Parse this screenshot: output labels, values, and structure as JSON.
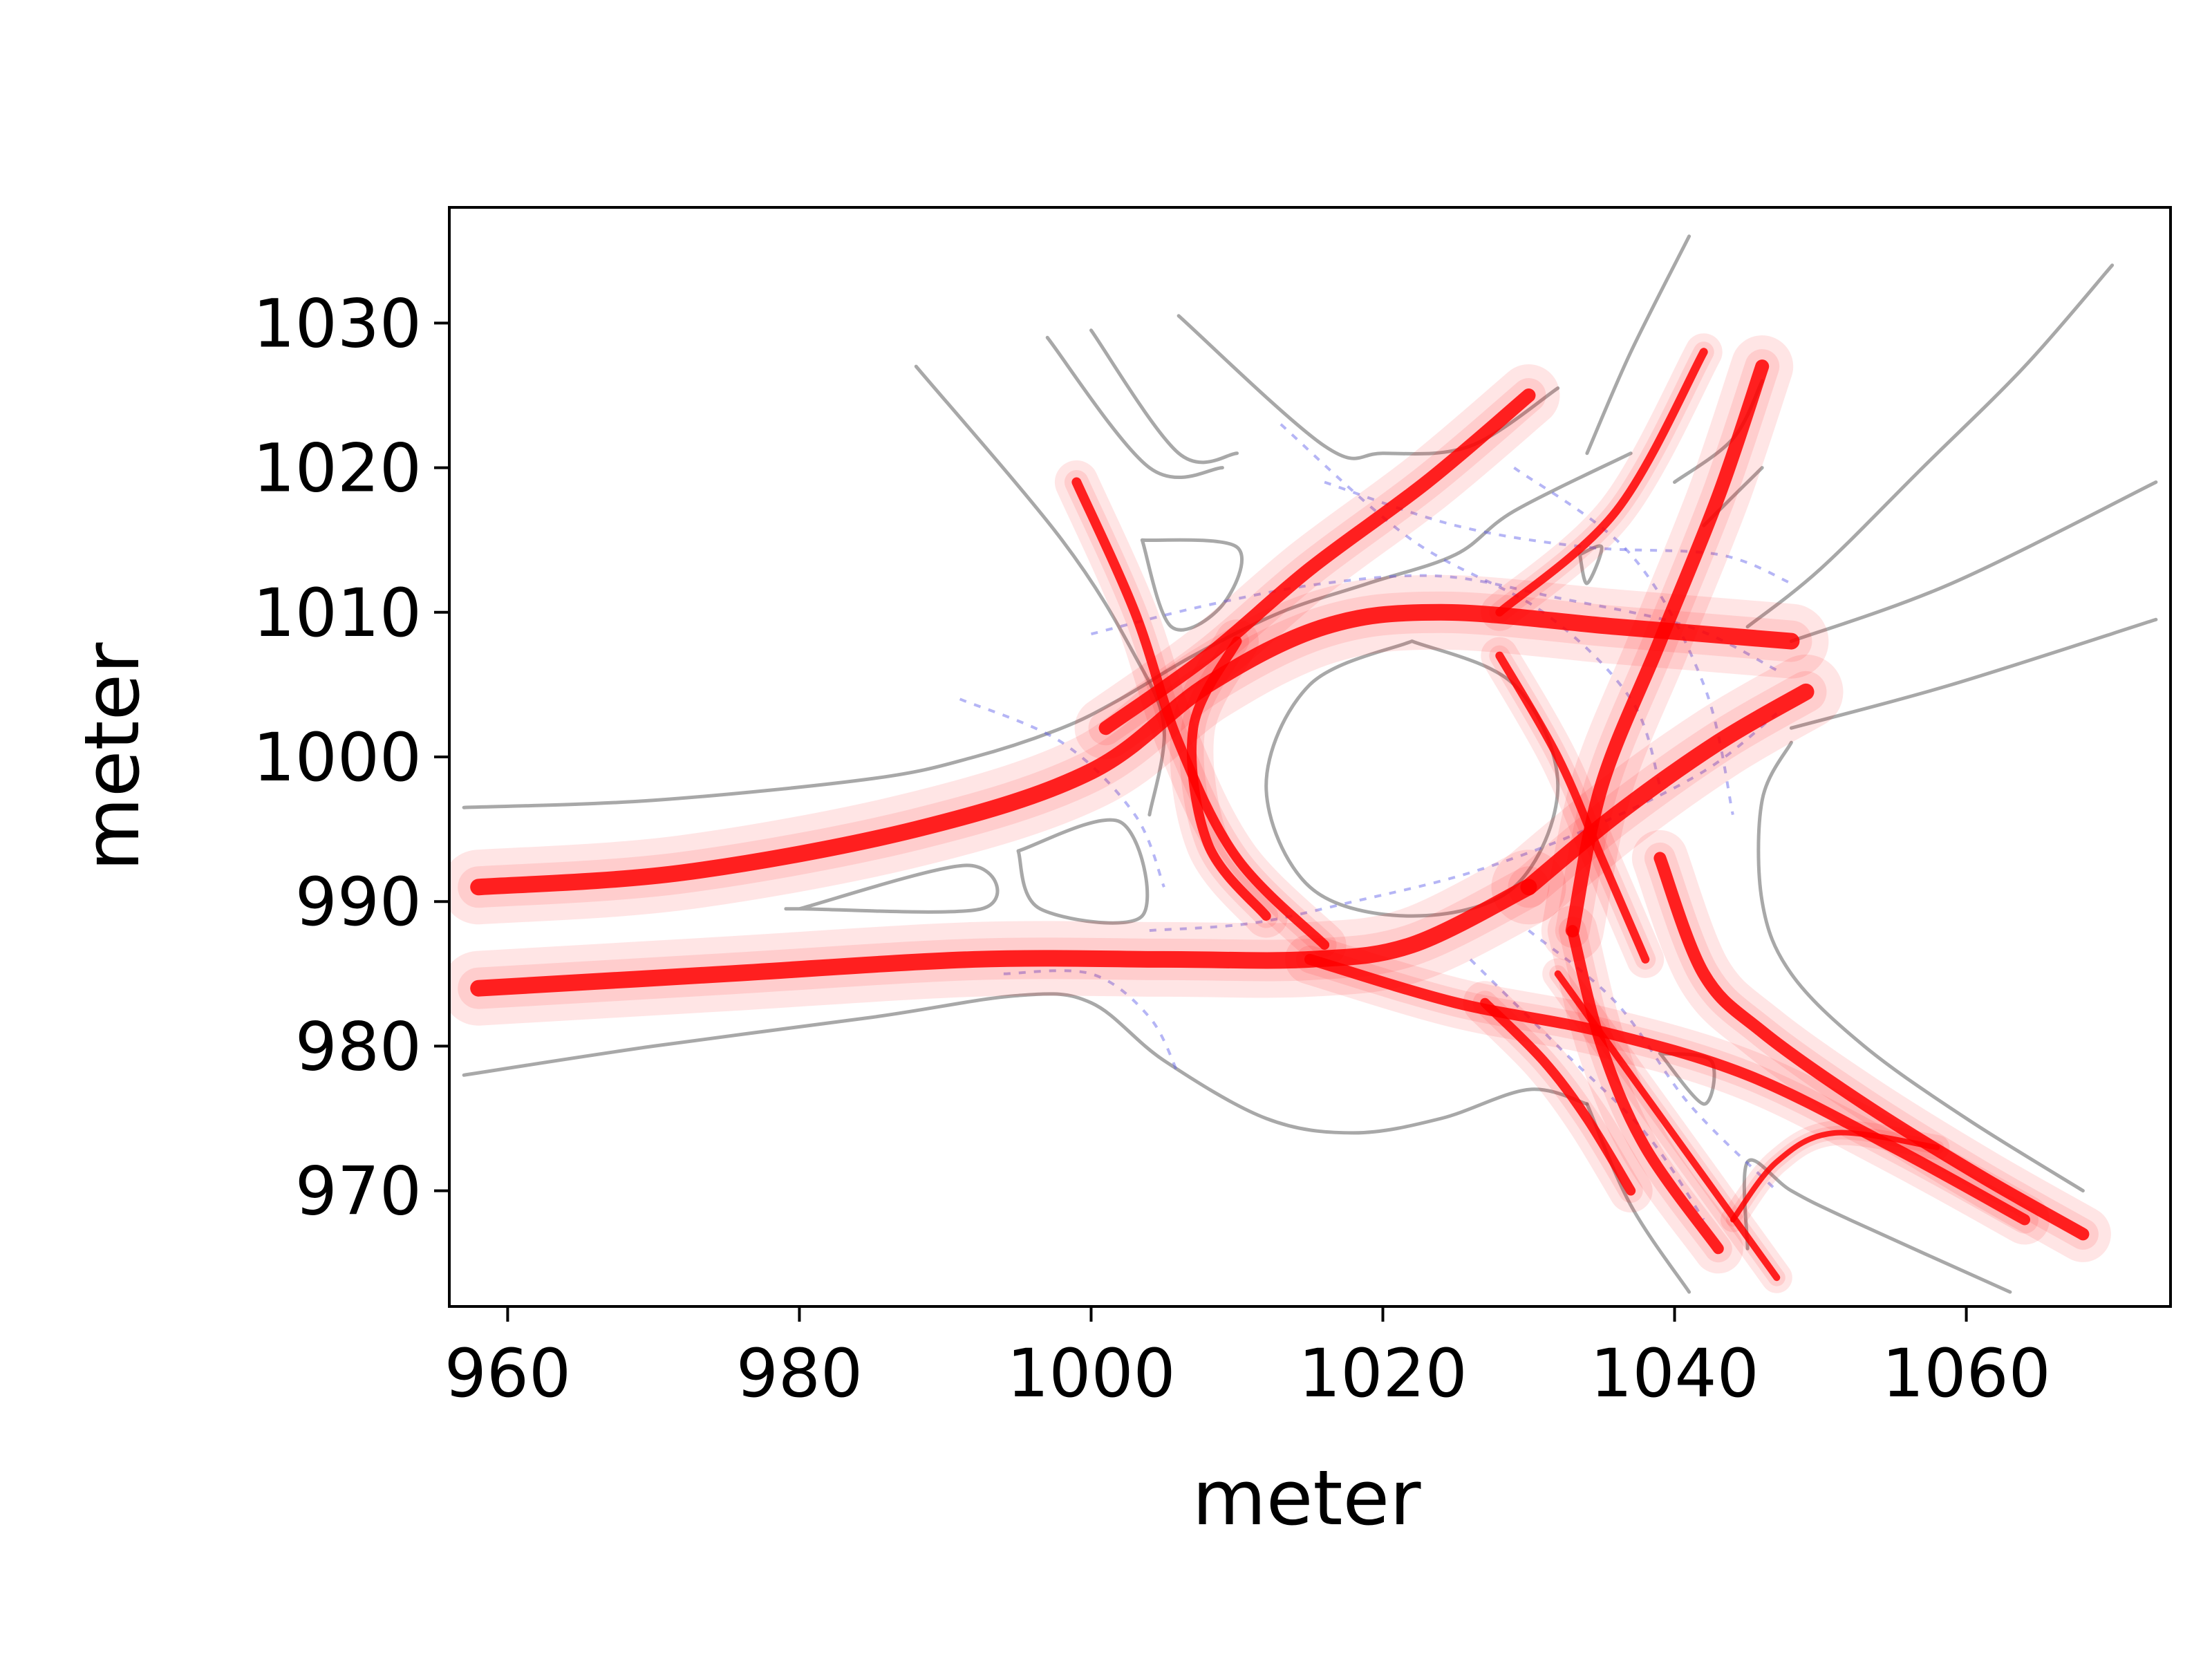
{
  "chart_data": {
    "type": "line",
    "title": "",
    "xlabel": "meter",
    "ylabel": "meter",
    "xlim": [
      956,
      1074
    ],
    "ylim": [
      962,
      1038
    ],
    "xticks": [
      960,
      980,
      1000,
      1020,
      1040,
      1060
    ],
    "yticks": [
      970,
      980,
      990,
      1000,
      1010,
      1020,
      1030
    ],
    "colors": {
      "trajectories": "#ff0000",
      "road_boundary": "#7a7a7a",
      "lane_centerline": "#5a5ae8"
    },
    "series": [
      {
        "kind": "trajectory",
        "width": 1.2,
        "x": [
          958,
          972,
          988,
          1000,
          1008,
          1016,
          1024,
          1036,
          1048
        ],
        "y": [
          991,
          992,
          995,
          999,
          1005,
          1009,
          1010,
          1009,
          1008
        ]
      },
      {
        "kind": "trajectory",
        "width": 1.2,
        "x": [
          958,
          975,
          992,
          1005,
          1015,
          1022,
          1030
        ],
        "y": [
          984,
          985,
          986,
          986,
          986,
          987,
          991
        ]
      },
      {
        "kind": "trajectory",
        "width": 1.2,
        "x": [
          1030,
          1036,
          1043,
          1049
        ],
        "y": [
          991,
          996,
          1001,
          1004.5
        ]
      },
      {
        "kind": "trajectory",
        "width": 1.0,
        "x": [
          1001,
          1008,
          1015,
          1023,
          1030
        ],
        "y": [
          1002,
          1007,
          1013,
          1019,
          1025
        ]
      },
      {
        "kind": "trajectory",
        "width": 1.0,
        "x": [
          1046,
          1043,
          1039,
          1035,
          1033
        ],
        "y": [
          1027,
          1018,
          1008,
          998,
          988
        ]
      },
      {
        "kind": "trajectory",
        "width": 0.8,
        "x": [
          1033,
          1035,
          1038,
          1043
        ],
        "y": [
          988,
          980,
          973,
          966
        ]
      },
      {
        "kind": "trajectory",
        "width": 0.9,
        "x": [
          1039,
          1042,
          1046,
          1053,
          1061,
          1068
        ],
        "y": [
          993,
          985,
          981,
          976,
          971,
          967
        ]
      },
      {
        "kind": "trajectory",
        "width": 0.8,
        "x": [
          1015,
          1025,
          1035,
          1045,
          1055,
          1064
        ],
        "y": [
          986,
          983,
          981,
          978,
          973,
          968
        ]
      },
      {
        "kind": "trajectory",
        "width": 0.7,
        "x": [
          1027,
          1031,
          1034,
          1037
        ],
        "y": [
          983,
          979,
          975,
          970
        ]
      },
      {
        "kind": "trajectory",
        "width": 0.7,
        "x": [
          999,
          1003,
          1006,
          1010,
          1016
        ],
        "y": [
          1019,
          1010,
          1001,
          993,
          987
        ]
      },
      {
        "kind": "trajectory",
        "width": 0.7,
        "x": [
          1010,
          1007,
          1008,
          1012
        ],
        "y": [
          1008,
          1002,
          994,
          989
        ]
      },
      {
        "kind": "trajectory",
        "width": 0.6,
        "x": [
          1028,
          1036,
          1042
        ],
        "y": [
          1010,
          1017,
          1028
        ]
      },
      {
        "kind": "trajectory",
        "width": 0.6,
        "x": [
          1028,
          1032,
          1035,
          1038
        ],
        "y": [
          1007,
          1000,
          993,
          986
        ]
      },
      {
        "kind": "trajectory",
        "width": 0.5,
        "x": [
          1032,
          1037,
          1042,
          1047
        ],
        "y": [
          985,
          978,
          971,
          964
        ]
      },
      {
        "kind": "trajectory",
        "width": 0.4,
        "x": [
          1044,
          1047,
          1051,
          1058
        ],
        "y": [
          968,
          972,
          974,
          973
        ]
      }
    ],
    "road_boundaries": [
      {
        "x": [
          957,
          970,
          985,
          992,
          998,
          1002,
          1007,
          1013,
          1019,
          1025,
          1029,
          1037
        ],
        "y": [
          996.5,
          997,
          998.5,
          1000,
          1002,
          1004,
          1007,
          1010,
          1012,
          1014,
          1017,
          1021
        ]
      },
      {
        "x": [
          957,
          970,
          985,
          995,
          1000,
          1005,
          1012,
          1018,
          1024,
          1030,
          1034
        ],
        "y": [
          978,
          980,
          982,
          983.5,
          983,
          979,
          975,
          974,
          975,
          977,
          976
        ]
      },
      {
        "x": [
          1034,
          1037,
          1041
        ],
        "y": [
          976,
          969,
          963
        ]
      },
      {
        "x": [
          1040,
          1044,
          1046
        ],
        "y": [
          1019,
          1022,
          1026
        ]
      },
      {
        "x": [
          1045,
          1050,
          1057,
          1064,
          1070
        ],
        "y": [
          1009,
          1013,
          1020,
          1027,
          1034
        ]
      },
      {
        "x": [
          1042,
          1044,
          1046
        ],
        "y": [
          1016,
          1018,
          1020
        ]
      },
      {
        "x": [
          1048,
          1059,
          1073
        ],
        "y": [
          1008,
          1012,
          1019
        ]
      },
      {
        "x": [
          1048,
          1059,
          1073
        ],
        "y": [
          1002,
          1005,
          1009.5
        ]
      },
      {
        "x": [
          1048,
          1046,
          1046,
          1048,
          1053,
          1060,
          1068
        ],
        "y": [
          1001,
          997,
          990,
          985,
          980,
          975,
          970
        ]
      },
      {
        "x": [
          1063,
          1052,
          1048,
          1045,
          1045
        ],
        "y": [
          963,
          968,
          970,
          972,
          966
        ]
      },
      {
        "x": [
          988,
          998,
          1003,
          1005,
          1004
        ],
        "y": [
          1027,
          1015,
          1007,
          1002,
          996
        ]
      },
      {
        "x": [
          997,
          1004,
          1009
        ],
        "y": [
          1029,
          1020,
          1020
        ]
      },
      {
        "x": [
          1000,
          1006,
          1010
        ],
        "y": [
          1029.5,
          1021,
          1021
        ]
      },
      {
        "x": [
          1006,
          1016,
          1020,
          1026,
          1032
        ],
        "y": [
          1030.5,
          1021.5,
          1021,
          1021.5,
          1025.5
        ]
      },
      {
        "x": [
          1034,
          1037,
          1041
        ],
        "y": [
          1021,
          1028,
          1036
        ]
      }
    ],
    "islands": [
      {
        "x": [
          1022,
          1015,
          1012,
          1015,
          1022,
          1029,
          1032,
          1029,
          1022
        ],
        "y": [
          1008,
          1005,
          998,
          991,
          989,
          991,
          998,
          1005,
          1008
        ]
      },
      {
        "x": [
          1003.5,
          1010,
          1009,
          1005.5,
          1003.5
        ],
        "y": [
          1015,
          1014.5,
          1010.5,
          1009,
          1015
        ]
      },
      {
        "x": [
          995,
          1002,
          1003.5,
          996.5,
          995
        ],
        "y": [
          993.5,
          995.5,
          989,
          989.5,
          993.5
        ]
      },
      {
        "x": [
          980,
          991.5,
          992.5,
          980,
          980
        ],
        "y": [
          989.5,
          992.5,
          989.5,
          989.5,
          989.5
        ]
      },
      {
        "x": [
          1033.5,
          1035,
          1034,
          1033.5
        ],
        "y": [
          1014,
          1014.5,
          1012,
          1014
        ]
      },
      {
        "x": [
          1039,
          1042.5,
          1042,
          1039
        ],
        "y": [
          979.5,
          979,
          976,
          979.5
        ]
      }
    ],
    "lane_centerlines": [
      {
        "x": [
          1004,
          1011,
          1018,
          1026,
          1034,
          1042,
          1047
        ],
        "y": [
          988,
          988.5,
          990,
          992,
          995,
          999,
          1003
        ]
      },
      {
        "x": [
          1000,
          1008,
          1016,
          1024,
          1032,
          1041,
          1047
        ],
        "y": [
          1008.5,
          1010.5,
          1012,
          1012.5,
          1011,
          1009,
          1006
        ]
      },
      {
        "x": [
          1013,
          1022,
          1031,
          1037,
          1039
        ],
        "y": [
          1023,
          1015,
          1010,
          1004,
          998
        ]
      },
      {
        "x": [
          1029,
          1037,
          1042,
          1044
        ],
        "y": [
          1020,
          1014,
          1005,
          996
        ]
      },
      {
        "x": [
          1030,
          1036,
          1041,
          1047
        ],
        "y": [
          988,
          983,
          976,
          970
        ]
      },
      {
        "x": [
          1026,
          1032,
          1038,
          1042
        ],
        "y": [
          986,
          980,
          974,
          968
        ]
      },
      {
        "x": [
          994,
          1000,
          1004,
          1006
        ],
        "y": [
          985,
          985,
          982,
          978
        ]
      },
      {
        "x": [
          991,
          998,
          1003,
          1005
        ],
        "y": [
          1004,
          1001,
          996,
          991
        ]
      },
      {
        "x": [
          1016,
          1025,
          1034,
          1043,
          1048
        ],
        "y": [
          1019,
          1016,
          1014.5,
          1014,
          1012
        ]
      }
    ]
  }
}
